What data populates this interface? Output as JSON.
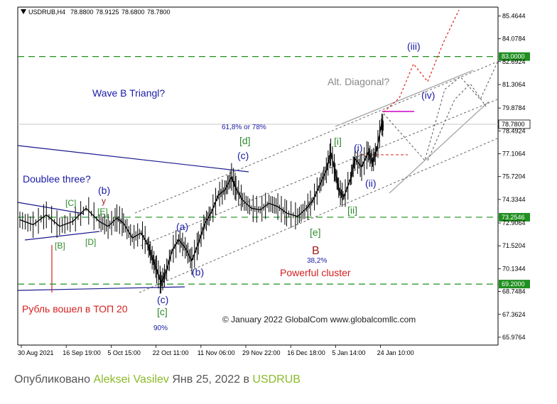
{
  "chart_data": {
    "type": "candlestick",
    "symbol_line": {
      "symbol": "USDRUB,H4",
      "open": "78.8800",
      "high": "78.9125",
      "low": "78.6800",
      "close": "78.7800"
    },
    "ylim": [
      65.5,
      86.0
    ],
    "y_ticks": [
      "85.4644",
      "84.0784",
      "82.6924",
      "81.3064",
      "79.8784",
      "78.4924",
      "77.1064",
      "75.7204",
      "74.3344",
      "72.9064",
      "71.5204",
      "70.1344",
      "68.7484",
      "67.3624",
      "65.9764"
    ],
    "x_ticks": [
      "30 Aug 2021",
      "16 Sep 19:00",
      "5 Oct 15:00",
      "22 Oct 11:00",
      "11 Nov 06:00",
      "29 Nov 22:00",
      "16 Dec 18:00",
      "5 Jan 14:00",
      "24 Jan 10:00"
    ],
    "price_levels": [
      {
        "label": "83.0000",
        "value": 83.0,
        "color": "#1f8f1f"
      },
      {
        "label": "73.2546",
        "value": 73.2546,
        "color": "#1f8f1f"
      },
      {
        "label": "69.2000",
        "value": 69.2,
        "color": "#1f8f1f"
      }
    ],
    "current_price": {
      "label": "78.7800",
      "value": 78.78
    },
    "price_path": [
      [
        0,
        73.1
      ],
      [
        6,
        72.8
      ],
      [
        12,
        73.4
      ],
      [
        18,
        72.7
      ],
      [
        24,
        73.0
      ],
      [
        30,
        73.8
      ],
      [
        36,
        73.0
      ],
      [
        40,
        72.7
      ],
      [
        44,
        73.2
      ],
      [
        47,
        72.9
      ],
      [
        51,
        72.0
      ],
      [
        55,
        72.3
      ],
      [
        58,
        71.6
      ],
      [
        60,
        70.8
      ],
      [
        62,
        70.1
      ],
      [
        64,
        69.3
      ],
      [
        66,
        69.8
      ],
      [
        69,
        71.2
      ],
      [
        72,
        71.9
      ],
      [
        75,
        71.4
      ],
      [
        78,
        70.6
      ],
      [
        81,
        71.7
      ],
      [
        84,
        72.9
      ],
      [
        87,
        73.6
      ],
      [
        90,
        74.6
      ],
      [
        93,
        74.9
      ],
      [
        96,
        75.7
      ],
      [
        98,
        75.0
      ],
      [
        101,
        74.3
      ],
      [
        105,
        73.8
      ],
      [
        109,
        73.7
      ],
      [
        113,
        74.1
      ],
      [
        117,
        73.9
      ],
      [
        121,
        73.5
      ],
      [
        126,
        73.3
      ],
      [
        130,
        73.8
      ],
      [
        133,
        74.3
      ],
      [
        136,
        75.2
      ],
      [
        139,
        76.1
      ],
      [
        141,
        77.2
      ],
      [
        143,
        76.0
      ],
      [
        145,
        74.8
      ],
      [
        147,
        74.5
      ],
      [
        150,
        75.6
      ],
      [
        152,
        76.8
      ],
      [
        155,
        76.3
      ],
      [
        158,
        77.2
      ],
      [
        160,
        76.6
      ],
      [
        162,
        77.4
      ],
      [
        164,
        78.9
      ],
      [
        165,
        78.78
      ]
    ],
    "annotations": [
      {
        "text": "Wave B Triangl?",
        "color": "#1a1aa8"
      },
      {
        "text": "Doublee three?",
        "color": "#1a1aa8"
      },
      {
        "text": "Alt. Diagonal?",
        "color": "#888888"
      },
      {
        "text": "61,8% or 78%",
        "color": "#1a1aa8"
      },
      {
        "text": "38,2%",
        "color": "#1a1aa8"
      },
      {
        "text": "90%",
        "color": "#1a1aa8"
      },
      {
        "text": "Powerful cluster",
        "color": "#d42020"
      },
      {
        "text": "Рубль вошел в ТОП 20",
        "color": "#d42020"
      },
      {
        "text": "B",
        "color": "#9b1b1b"
      },
      {
        "text": "© January 2022 GlobalCom www.globalcomllc.com",
        "color": "#222222"
      }
    ],
    "wave_labels": [
      {
        "text": "[C]",
        "color": "#2e8b2e"
      },
      {
        "text": "(b)",
        "color": "#1a1aa8"
      },
      {
        "text": "y",
        "color": "#9b1b1b"
      },
      {
        "text": "[E]",
        "color": "#2e8b2e"
      },
      {
        "text": "[B]",
        "color": "#2e8b2e"
      },
      {
        "text": "[D]",
        "color": "#2e8b2e"
      },
      {
        "text": "(a)",
        "color": "#1a1aa8"
      },
      {
        "text": "(b)",
        "color": "#1a1aa8"
      },
      {
        "text": "(c)",
        "color": "#1a1aa8"
      },
      {
        "text": "[c]",
        "color": "#2e8b2e"
      },
      {
        "text": "[d]",
        "color": "#2e8b2e"
      },
      {
        "text": "(c)",
        "color": "#1a1aa8"
      },
      {
        "text": "[e]",
        "color": "#2e8b2e"
      },
      {
        "text": "[i]",
        "color": "#2e8b2e"
      },
      {
        "text": "[ii]",
        "color": "#2e8b2e"
      },
      {
        "text": "(i)",
        "color": "#1a1aa8"
      },
      {
        "text": "(ii)",
        "color": "#1a1aa8"
      },
      {
        "text": "(iii)",
        "color": "#1a1aa8"
      },
      {
        "text": "(iv)",
        "color": "#1a1aa8"
      }
    ]
  },
  "caption": {
    "prefix": "Опубликовано",
    "author": "Aleksei Vasilev",
    "date": "Янв 25, 2022 в",
    "symbol": "USDRUB"
  }
}
